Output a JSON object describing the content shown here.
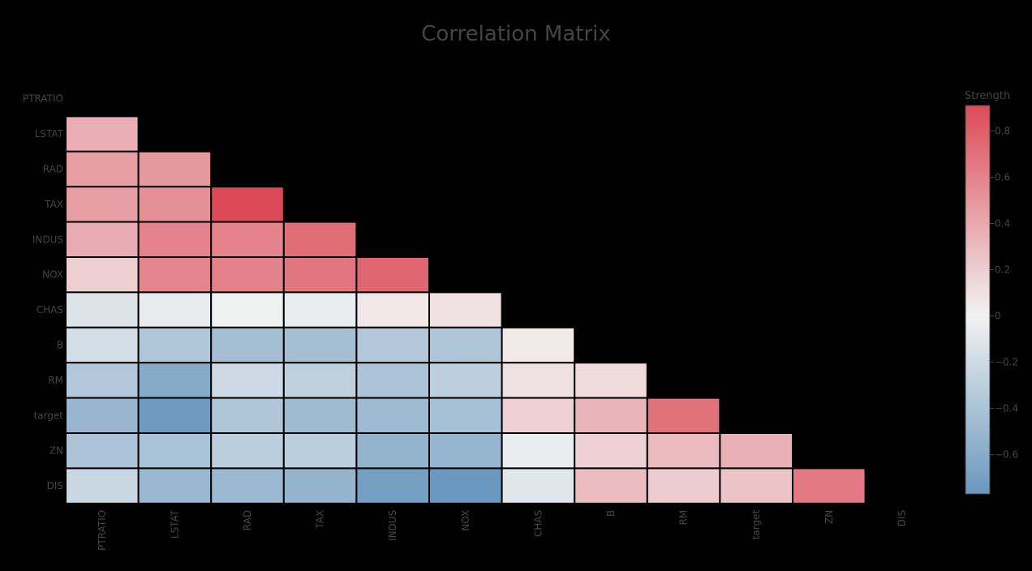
{
  "chart_data": {
    "type": "heatmap",
    "title": "Correlation Matrix",
    "colorbar": {
      "title": "Strength",
      "range": [
        -0.77,
        0.91
      ],
      "ticks": [
        0.8,
        0.6,
        0.4,
        0.2,
        0,
        -0.2,
        -0.4,
        -0.6
      ],
      "tick_labels": [
        "0.8",
        "0.6",
        "0.4",
        "0.2",
        "0",
        "−0.2",
        "−0.4",
        "−0.6"
      ],
      "colorscale": [
        [
          0.0,
          "#6a98be"
        ],
        [
          0.46,
          "#f2f2f2"
        ],
        [
          1.0,
          "#dc4a57"
        ]
      ]
    },
    "x_labels": [
      "PTRATIO",
      "LSTAT",
      "RAD",
      "TAX",
      "INDUS",
      "NOX",
      "CHAS",
      "B",
      "RM",
      "target",
      "ZN",
      "DIS"
    ],
    "y_labels": [
      "PTRATIO",
      "LSTAT",
      "RAD",
      "TAX",
      "INDUS",
      "NOX",
      "CHAS",
      "B",
      "RM",
      "target",
      "ZN",
      "DIS"
    ],
    "matrix": [
      [],
      [
        0.37
      ],
      [
        0.46,
        0.49
      ],
      [
        0.46,
        0.54,
        0.91
      ],
      [
        0.38,
        0.6,
        0.6,
        0.72
      ],
      [
        0.19,
        0.59,
        0.61,
        0.67,
        0.76
      ],
      [
        -0.12,
        -0.05,
        -0.01,
        -0.04,
        0.06,
        0.09
      ],
      [
        -0.18,
        -0.37,
        -0.44,
        -0.44,
        -0.36,
        -0.38,
        0.05
      ],
      [
        -0.36,
        -0.61,
        -0.21,
        -0.29,
        -0.39,
        -0.3,
        0.09,
        0.13
      ],
      [
        -0.51,
        -0.74,
        -0.38,
        -0.47,
        -0.48,
        -0.43,
        0.18,
        0.33,
        0.7
      ],
      [
        -0.39,
        -0.41,
        -0.31,
        -0.31,
        -0.53,
        -0.52,
        -0.04,
        0.18,
        0.31,
        0.36
      ],
      [
        -0.23,
        -0.5,
        -0.49,
        -0.53,
        -0.71,
        -0.77,
        -0.1,
        0.29,
        0.21,
        0.25,
        0.66
      ]
    ]
  }
}
